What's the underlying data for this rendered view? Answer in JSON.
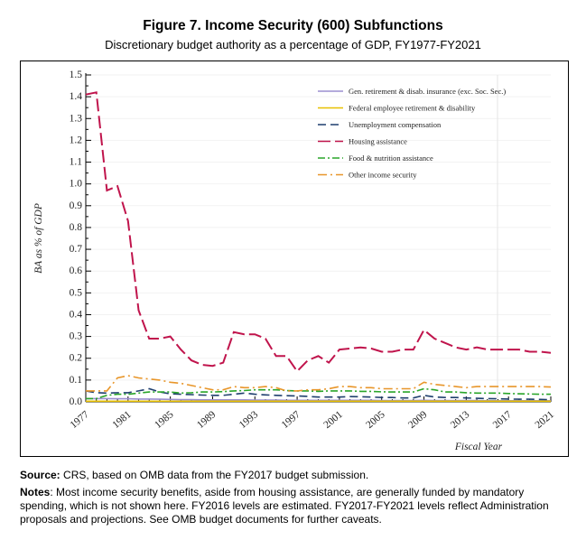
{
  "figure_title": "Figure 7. Income Security (600) Subfunctions",
  "subtitle": "Discretionary budget authority as a percentage of GDP, FY1977-FY2021",
  "source_label": "Source:",
  "source_text": " CRS, based on OMB data from the FY2017 budget submission.",
  "notes_label": "Notes",
  "notes_text": ": Most income security benefits, aside from housing assistance, are generally funded by mandatory spending, which is not shown here. FY2016 levels are estimated. FY2017-FY2021 levels reflect Administration proposals and projections. See OMB budget documents for further caveats.",
  "chart_data": {
    "type": "line",
    "title": "Figure 7. Income Security (600) Subfunctions",
    "xlabel": "Fiscal Year",
    "ylabel": "BA as % of GDP",
    "xlim": [
      1977,
      2021
    ],
    "ylim": [
      0,
      1.5
    ],
    "x_ticks": [
      "1977",
      "1981",
      "1985",
      "1989",
      "1993",
      "1997",
      "2001",
      "2005",
      "2009",
      "2013",
      "2017",
      "2021"
    ],
    "y_ticks": [
      "0.0",
      "0.1",
      "0.2",
      "0.3",
      "0.4",
      "0.5",
      "0.6",
      "0.7",
      "0.8",
      "0.9",
      "1.0",
      "1.1",
      "1.2",
      "1.3",
      "1.4",
      "1.5"
    ],
    "legend_position": "top-right",
    "grid": false,
    "x": [
      1977,
      1978,
      1979,
      1980,
      1981,
      1982,
      1983,
      1984,
      1985,
      1986,
      1987,
      1988,
      1989,
      1990,
      1991,
      1992,
      1993,
      1994,
      1995,
      1996,
      1997,
      1998,
      1999,
      2000,
      2001,
      2002,
      2003,
      2004,
      2005,
      2006,
      2007,
      2008,
      2009,
      2010,
      2011,
      2012,
      2013,
      2014,
      2015,
      2016,
      2017,
      2018,
      2019,
      2020,
      2021
    ],
    "series": [
      {
        "name": "Gen. retirement & disab. insurance (exc. Soc. Sec.)",
        "color": "#9b8fd0",
        "dash": "",
        "values": [
          0.015,
          0.015,
          0.015,
          0.014,
          0.014,
          0.013,
          0.013,
          0.012,
          0.011,
          0.01,
          0.01,
          0.009,
          0.009,
          0.009,
          0.009,
          0.009,
          0.008,
          0.008,
          0.008,
          0.007,
          0.007,
          0.007,
          0.007,
          0.007,
          0.007,
          0.007,
          0.007,
          0.007,
          0.006,
          0.006,
          0.006,
          0.006,
          0.007,
          0.006,
          0.006,
          0.006,
          0.006,
          0.006,
          0.005,
          0.005,
          0.005,
          0.005,
          0.005,
          0.005,
          0.005
        ]
      },
      {
        "name": "Federal employee retirement & disability",
        "color": "#e8c000",
        "dash": "",
        "values": [
          0.003,
          0.003,
          0.003,
          0.003,
          0.003,
          0.003,
          0.003,
          0.003,
          0.003,
          0.003,
          0.003,
          0.003,
          0.003,
          0.003,
          0.003,
          0.003,
          0.003,
          0.003,
          0.003,
          0.003,
          0.003,
          0.003,
          0.003,
          0.003,
          0.003,
          0.003,
          0.003,
          0.003,
          0.003,
          0.003,
          0.003,
          0.003,
          0.003,
          0.003,
          0.003,
          0.003,
          0.003,
          0.003,
          0.003,
          0.003,
          0.003,
          0.003,
          0.003,
          0.003,
          0.003
        ]
      },
      {
        "name": "Unemployment compensation",
        "color": "#1f3f6e",
        "dash": "9,5",
        "values": [
          0.05,
          0.042,
          0.04,
          0.042,
          0.042,
          0.05,
          0.06,
          0.045,
          0.037,
          0.035,
          0.033,
          0.031,
          0.03,
          0.03,
          0.035,
          0.04,
          0.035,
          0.032,
          0.03,
          0.028,
          0.027,
          0.025,
          0.022,
          0.022,
          0.022,
          0.024,
          0.023,
          0.022,
          0.02,
          0.02,
          0.018,
          0.018,
          0.03,
          0.022,
          0.02,
          0.02,
          0.018,
          0.016,
          0.015,
          0.014,
          0.013,
          0.012,
          0.012,
          0.011,
          0.01
        ]
      },
      {
        "name": "Housing assistance",
        "color": "#c0144c",
        "dash": "14,5",
        "values": [
          1.41,
          1.42,
          0.97,
          0.99,
          0.83,
          0.42,
          0.29,
          0.29,
          0.3,
          0.24,
          0.19,
          0.17,
          0.165,
          0.18,
          0.32,
          0.31,
          0.31,
          0.29,
          0.21,
          0.21,
          0.14,
          0.19,
          0.21,
          0.18,
          0.24,
          0.245,
          0.25,
          0.245,
          0.23,
          0.23,
          0.24,
          0.24,
          0.33,
          0.29,
          0.27,
          0.25,
          0.24,
          0.25,
          0.24,
          0.24,
          0.24,
          0.24,
          0.23,
          0.23,
          0.225
        ]
      },
      {
        "name": "Food & nutrition assistance",
        "color": "#2aa52a",
        "dash": "8,3,2,3",
        "values": [
          0.015,
          0.015,
          0.03,
          0.035,
          0.035,
          0.04,
          0.045,
          0.045,
          0.045,
          0.04,
          0.042,
          0.045,
          0.045,
          0.047,
          0.05,
          0.052,
          0.055,
          0.055,
          0.055,
          0.052,
          0.05,
          0.05,
          0.048,
          0.05,
          0.05,
          0.05,
          0.048,
          0.048,
          0.046,
          0.045,
          0.045,
          0.045,
          0.06,
          0.055,
          0.045,
          0.045,
          0.042,
          0.04,
          0.04,
          0.04,
          0.038,
          0.037,
          0.036,
          0.035,
          0.035
        ]
      },
      {
        "name": "Other income security",
        "color": "#e8962a",
        "dash": "10,4,2,4",
        "values": [
          0.05,
          0.05,
          0.05,
          0.11,
          0.12,
          0.11,
          0.105,
          0.1,
          0.09,
          0.085,
          0.075,
          0.065,
          0.055,
          0.055,
          0.07,
          0.065,
          0.065,
          0.07,
          0.065,
          0.05,
          0.05,
          0.055,
          0.055,
          0.06,
          0.07,
          0.07,
          0.065,
          0.065,
          0.06,
          0.06,
          0.06,
          0.06,
          0.09,
          0.08,
          0.075,
          0.07,
          0.065,
          0.07,
          0.07,
          0.07,
          0.07,
          0.07,
          0.07,
          0.07,
          0.068
        ]
      }
    ]
  }
}
